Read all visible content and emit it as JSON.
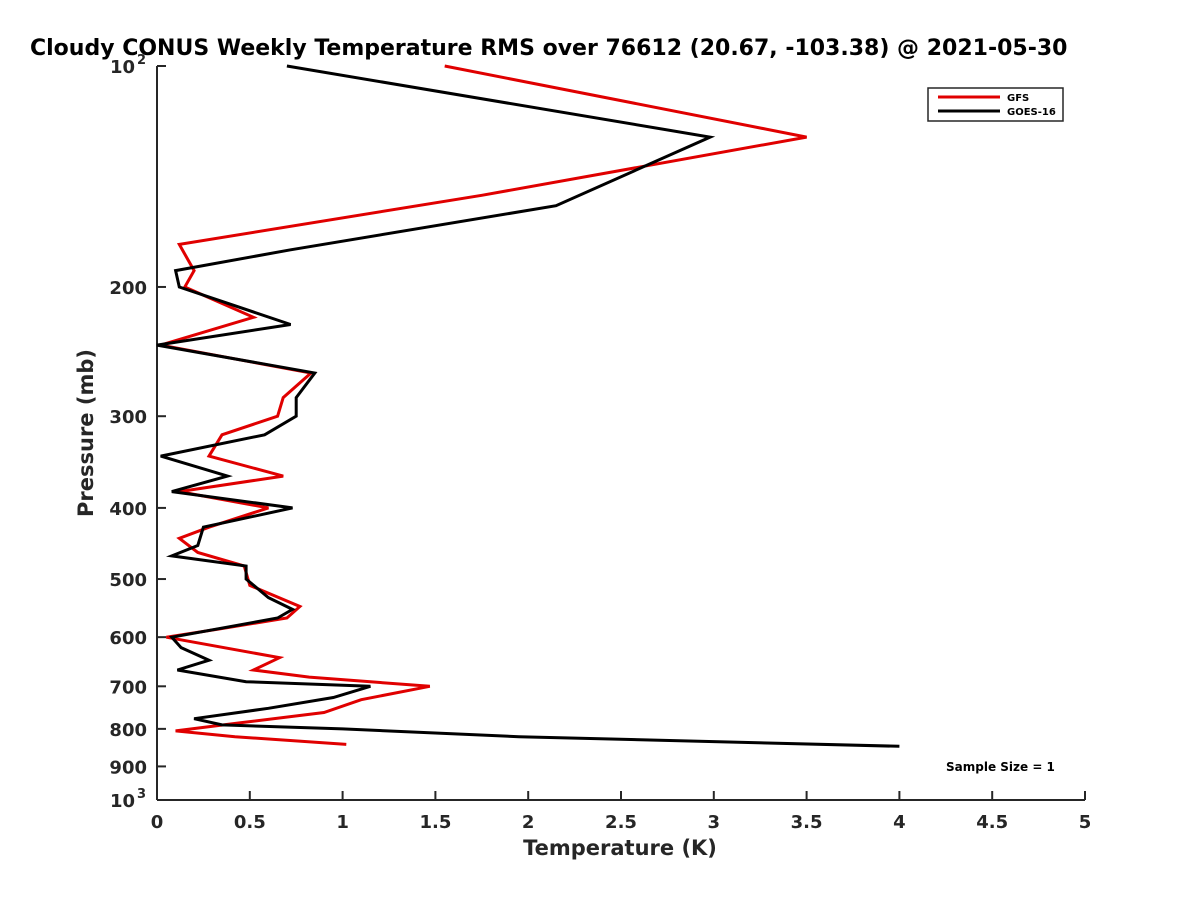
{
  "chart_data": {
    "type": "line",
    "title": "Cloudy CONUS Weekly Temperature RMS over 76612 (20.67, -103.38) @ 2021-05-30",
    "xlabel": "Temperature (K)",
    "ylabel": "Pressure (mb)",
    "xlim": [
      0,
      5
    ],
    "ylim": [
      100,
      1000
    ],
    "yscale": "log",
    "y_reversed": true,
    "x_ticks": [
      "0",
      "0.5",
      "1",
      "1.5",
      "2",
      "2.5",
      "3",
      "3.5",
      "4",
      "4.5",
      "5"
    ],
    "y_ticks": [
      {
        "value": 100,
        "label": "10",
        "sup": "2"
      },
      {
        "value": 200,
        "label": "200",
        "sup": ""
      },
      {
        "value": 300,
        "label": "300",
        "sup": ""
      },
      {
        "value": 400,
        "label": "400",
        "sup": ""
      },
      {
        "value": 500,
        "label": "500",
        "sup": ""
      },
      {
        "value": 600,
        "label": "600",
        "sup": ""
      },
      {
        "value": 700,
        "label": "700",
        "sup": ""
      },
      {
        "value": 800,
        "label": "800",
        "sup": ""
      },
      {
        "value": 900,
        "label": "900",
        "sup": ""
      },
      {
        "value": 1000,
        "label": "10",
        "sup": "3"
      }
    ],
    "legend_position": "top-right",
    "grid": false,
    "annotation": "Sample Size = 1",
    "series": [
      {
        "name": "GFS",
        "color": "#e00000",
        "points": [
          [
            1.55,
            100
          ],
          [
            3.5,
            125
          ],
          [
            1.75,
            150
          ],
          [
            0.12,
            175
          ],
          [
            0.2,
            190
          ],
          [
            0.15,
            200
          ],
          [
            0.52,
            220
          ],
          [
            0.02,
            240
          ],
          [
            0.83,
            262
          ],
          [
            0.68,
            283
          ],
          [
            0.65,
            300
          ],
          [
            0.35,
            318
          ],
          [
            0.28,
            340
          ],
          [
            0.68,
            362
          ],
          [
            0.12,
            380
          ],
          [
            0.6,
            400
          ],
          [
            0.28,
            425
          ],
          [
            0.12,
            440
          ],
          [
            0.22,
            460
          ],
          [
            0.47,
            480
          ],
          [
            0.5,
            510
          ],
          [
            0.77,
            545
          ],
          [
            0.7,
            565
          ],
          [
            0.33,
            585
          ],
          [
            0.05,
            600
          ],
          [
            0.66,
            640
          ],
          [
            0.52,
            665
          ],
          [
            0.82,
            680
          ],
          [
            1.47,
            700
          ],
          [
            1.1,
            730
          ],
          [
            0.9,
            760
          ],
          [
            0.45,
            785
          ],
          [
            0.1,
            805
          ],
          [
            0.42,
            820
          ],
          [
            1.02,
            840
          ]
        ]
      },
      {
        "name": "GOES-16",
        "color": "#000000",
        "points": [
          [
            0.7,
            100
          ],
          [
            2.98,
            125
          ],
          [
            2.15,
            155
          ],
          [
            0.72,
            178
          ],
          [
            0.1,
            190
          ],
          [
            0.12,
            200
          ],
          [
            0.72,
            225
          ],
          [
            0.0,
            240
          ],
          [
            0.85,
            262
          ],
          [
            0.75,
            283
          ],
          [
            0.75,
            300
          ],
          [
            0.58,
            318
          ],
          [
            0.02,
            340
          ],
          [
            0.38,
            362
          ],
          [
            0.08,
            380
          ],
          [
            0.73,
            400
          ],
          [
            0.25,
            425
          ],
          [
            0.22,
            450
          ],
          [
            0.08,
            465
          ],
          [
            0.48,
            480
          ],
          [
            0.48,
            500
          ],
          [
            0.6,
            530
          ],
          [
            0.73,
            550
          ],
          [
            0.65,
            565
          ],
          [
            0.08,
            600
          ],
          [
            0.13,
            620
          ],
          [
            0.28,
            645
          ],
          [
            0.11,
            665
          ],
          [
            0.48,
            690
          ],
          [
            1.15,
            700
          ],
          [
            0.95,
            725
          ],
          [
            0.6,
            750
          ],
          [
            0.2,
            775
          ],
          [
            0.35,
            790
          ],
          [
            1.0,
            800
          ],
          [
            1.95,
            820
          ],
          [
            4.0,
            845
          ]
        ]
      }
    ]
  }
}
